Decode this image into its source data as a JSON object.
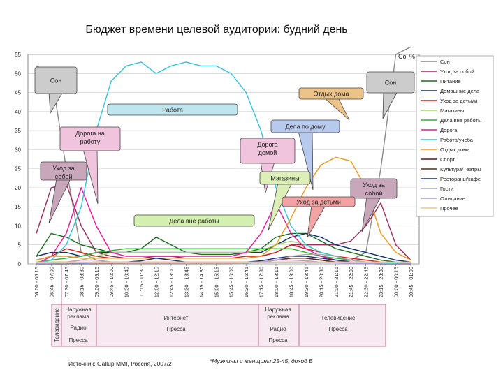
{
  "title": "Бюджет времени целевой аудитории: будний день",
  "chart_data": {
    "type": "line",
    "ylabel": "Col %",
    "ylim": [
      0,
      55
    ],
    "yticks": [
      0,
      5,
      10,
      15,
      20,
      25,
      30,
      35,
      40,
      45,
      50,
      55
    ],
    "grid": true,
    "legend_position": "right",
    "x_labels": [
      "06:00 - 06:15",
      "06:45 - 07:00",
      "07:30 - 07:45",
      "08:15 - 08:30",
      "09:00 - 09:15",
      "09:45 - 10:00",
      "10:30 - 10:45",
      "11:15 - 11:30",
      "12:00 - 12:15",
      "12:45 - 13:00",
      "13:30 - 13:45",
      "14:15 - 14:30",
      "15:00 - 15:15",
      "15:45 - 16:00",
      "16:30 - 16:45",
      "17:15 - 17:30",
      "18:00 - 18:15",
      "18:45 - 19:00",
      "19:30 - 19:45",
      "20:15 - 20:30",
      "21:00 - 21:15",
      "21:45 - 22:00",
      "22:30 - 22:45",
      "23:15 - 23:30",
      "00:00 - 00:15",
      "00:45 - 01:00"
    ],
    "series": [
      {
        "name": "Сон",
        "color": "#8a8a8a",
        "values": [
          52,
          50,
          25,
          3,
          1,
          0.5,
          0.5,
          0.5,
          0.5,
          0.5,
          0.5,
          0.5,
          0.5,
          0.5,
          0.5,
          0.5,
          0.5,
          0.5,
          0.5,
          0.5,
          0.5,
          1,
          3,
          25,
          55,
          58
        ]
      },
      {
        "name": "Уход за собой",
        "color": "#9a2b5e",
        "values": [
          8,
          20,
          21,
          10,
          3,
          2,
          1.5,
          1.5,
          2,
          2,
          1.5,
          1.5,
          1.5,
          1.5,
          1.5,
          2,
          3,
          5,
          5,
          5,
          5,
          6,
          10,
          16,
          5,
          1
        ]
      },
      {
        "name": "Питание",
        "color": "#1a6b20",
        "values": [
          2,
          8,
          7,
          5,
          4,
          3,
          3,
          4,
          7,
          5,
          3,
          2.5,
          2.5,
          2.5,
          3,
          4,
          7,
          8,
          8,
          6,
          4,
          3,
          2,
          1,
          0.5,
          0.3
        ]
      },
      {
        "name": "Домашние дела",
        "color": "#0b2f6b",
        "values": [
          2,
          3,
          3,
          2,
          3,
          3,
          3,
          3,
          3,
          3,
          3,
          3,
          3,
          3,
          3,
          3,
          5,
          7,
          8,
          7,
          5,
          4,
          3,
          2,
          1,
          0.5
        ]
      },
      {
        "name": "Уход за детьми",
        "color": "#d11c1c",
        "values": [
          1,
          2,
          4,
          3,
          2,
          1.5,
          1.5,
          1.5,
          1.5,
          1.5,
          1.5,
          1.5,
          1.5,
          1.5,
          2,
          2,
          3,
          5,
          4,
          3,
          2,
          1.5,
          1,
          0.5,
          0.3,
          0.2
        ]
      },
      {
        "name": "Магазины",
        "color": "#a8d46a",
        "values": [
          0,
          0,
          0.5,
          1,
          2,
          3,
          3,
          3,
          3,
          3,
          3,
          3,
          3,
          3,
          3,
          3.5,
          5,
          6,
          5,
          3,
          2,
          1,
          0.5,
          0.3,
          0.2,
          0.1
        ]
      },
      {
        "name": "Дела вне работы",
        "color": "#2fb030",
        "values": [
          0.5,
          1,
          1.5,
          2,
          3,
          3.5,
          4,
          4,
          4,
          4,
          4,
          4,
          4,
          4,
          4,
          4,
          4,
          4,
          3,
          2,
          1.5,
          1,
          0.5,
          0.3,
          0.2,
          0.1
        ]
      },
      {
        "name": "Дорога",
        "color": "#e3189b",
        "values": [
          0,
          2,
          8,
          20,
          10,
          3,
          2,
          2,
          2,
          2,
          2,
          2,
          2,
          2,
          3,
          8,
          16,
          8,
          4,
          2,
          1,
          0.5,
          0.3,
          0.2,
          0.1,
          0.1
        ]
      },
      {
        "name": "Работа/учеба",
        "color": "#35c0d9",
        "values": [
          0,
          1,
          5,
          15,
          35,
          48,
          52,
          53,
          50,
          52,
          53,
          52,
          52,
          50,
          45,
          35,
          20,
          10,
          5,
          3,
          2,
          1,
          0.5,
          0.3,
          0.2,
          0.1
        ]
      },
      {
        "name": "Отдых дома",
        "color": "#e89a1a",
        "values": [
          1,
          2,
          2,
          1.5,
          1.5,
          1.5,
          1.5,
          1.5,
          1.5,
          1.5,
          1.5,
          1.5,
          1.5,
          1.5,
          1.5,
          2,
          5,
          12,
          20,
          26,
          28,
          27,
          20,
          8,
          3,
          1
        ]
      },
      {
        "name": "Спорт",
        "color": "#5a1a1a",
        "values": [
          0,
          0.5,
          0.5,
          0.3,
          0.3,
          0.3,
          0.3,
          0.3,
          0.3,
          0.3,
          0.3,
          0.3,
          0.3,
          0.3,
          0.3,
          0.5,
          1,
          1.5,
          1.5,
          1,
          0.5,
          0.3,
          0.1,
          0,
          0,
          0
        ]
      },
      {
        "name": "Культура/Театры",
        "color": "#5a2a1a",
        "values": [
          0,
          0,
          0,
          0,
          0,
          0.2,
          0.3,
          0.3,
          0.3,
          0.3,
          0.3,
          0.3,
          0.3,
          0.3,
          0.3,
          0.5,
          1,
          1.5,
          1.5,
          1,
          0.5,
          0.3,
          0.1,
          0,
          0,
          0
        ]
      },
      {
        "name": "Рестораны/кафе",
        "color": "#1a2a7a",
        "values": [
          0,
          0,
          0,
          0.2,
          0.5,
          0.5,
          0.5,
          0.8,
          1.5,
          1,
          0.5,
          0.5,
          0.5,
          0.5,
          0.5,
          0.8,
          1.5,
          2,
          2,
          1.5,
          1,
          0.5,
          0.3,
          0.1,
          0,
          0
        ]
      },
      {
        "name": "Гости",
        "color": "#a9a9a9",
        "values": [
          0,
          0,
          0,
          0,
          0,
          0,
          0,
          0,
          0,
          0,
          0,
          0,
          0,
          0,
          0.2,
          0.5,
          1,
          2,
          2.5,
          2.5,
          2,
          1,
          0.5,
          0.2,
          0,
          0
        ]
      },
      {
        "name": "Ожидание",
        "color": "#b19ac9",
        "values": [
          0,
          0.3,
          0.5,
          1,
          1,
          0.5,
          0.5,
          0.5,
          0.5,
          0.5,
          0.5,
          0.5,
          0.5,
          0.5,
          0.5,
          0.5,
          1,
          1,
          0.8,
          0.5,
          0.3,
          0.2,
          0.1,
          0,
          0,
          0
        ]
      },
      {
        "name": "Прочее",
        "color": "#f5c48c",
        "values": [
          0.5,
          0.5,
          0.5,
          0.5,
          0.5,
          0.5,
          0.5,
          0.5,
          0.5,
          0.5,
          0.5,
          0.5,
          0.5,
          0.5,
          0.5,
          0.5,
          0.5,
          0.5,
          0.5,
          0.5,
          0.5,
          0.5,
          0.5,
          0.5,
          0.5,
          0.5
        ]
      }
    ],
    "annotations": [
      {
        "text": "Сон",
        "fill": "#cccccc"
      },
      {
        "text": "Сон",
        "fill": "#cccccc"
      },
      {
        "text": "Отдых дома",
        "fill": "#ecc48a"
      },
      {
        "text": "Работа",
        "fill": "#bfe6ef"
      },
      {
        "text": "Дела по дому",
        "fill": "#b8c9ee"
      },
      {
        "text": "Дорога на работу",
        "fill": "#f1c4dd"
      },
      {
        "text": "Дорога домой",
        "fill": "#f1c4dd"
      },
      {
        "text": "Уход за собой",
        "fill": "#c9a7bb"
      },
      {
        "text": "Магазины",
        "fill": "#dcefb7"
      },
      {
        "text": "Уход за собой",
        "fill": "#c9a7bb"
      },
      {
        "text": "Уход за детьми",
        "fill": "#f2a3a3"
      },
      {
        "text": "Дела вне работы",
        "fill": "#d4f0b0"
      }
    ]
  },
  "media_table": {
    "side_label": "Телевидение",
    "cells": [
      {
        "text": "Наружная реклама"
      },
      {
        "text": "Радио"
      },
      {
        "text": "Пресса"
      },
      {
        "text": "Интернет"
      },
      {
        "text": "Пресса"
      },
      {
        "text": "Наружная реклама"
      },
      {
        "text": "Радио"
      },
      {
        "text": "Пресса"
      },
      {
        "text": "Телевидение"
      },
      {
        "text": "Пресса"
      }
    ]
  },
  "source": "Источник: Gallup MMI, Россия, 2007/2",
  "footnote": "*Мужчины и женщины 25-45, доход В"
}
